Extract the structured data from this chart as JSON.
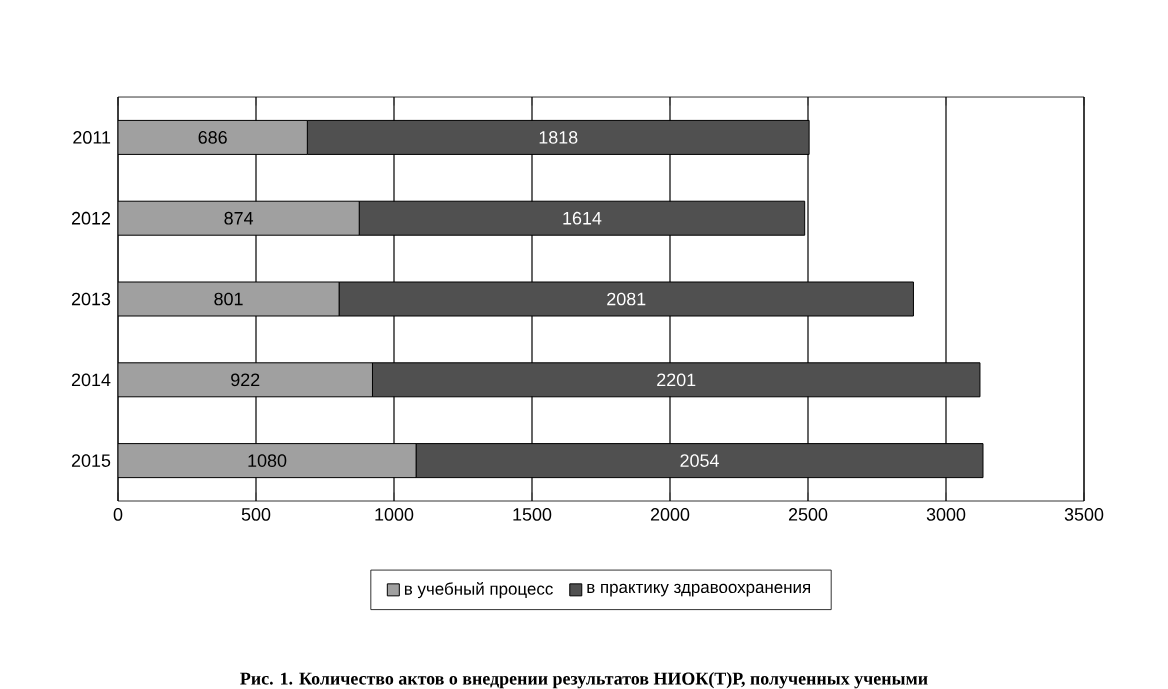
{
  "chart_data": {
    "type": "bar",
    "orientation": "horizontal",
    "stacked": true,
    "categories": [
      "2011",
      "2012",
      "2013",
      "2014",
      "2015"
    ],
    "series": [
      {
        "name": "в учебный процесс",
        "color": "#a0a0a0",
        "values": [
          686,
          874,
          801,
          922,
          1080
        ]
      },
      {
        "name": "в практику здравоохранения",
        "color": "#505050",
        "values": [
          1818,
          1614,
          2081,
          2201,
          2054
        ]
      }
    ],
    "xlim": [
      0,
      3500
    ],
    "xticks": [
      0,
      500,
      1000,
      1500,
      2000,
      2500,
      3000,
      3500
    ],
    "grid": "x",
    "legend": "bottom",
    "data_labels": true,
    "annotations": [
      "Рис. 1. Количество актов о внедрении результатов НИОК(Т)Р, полученных учеными"
    ]
  }
}
